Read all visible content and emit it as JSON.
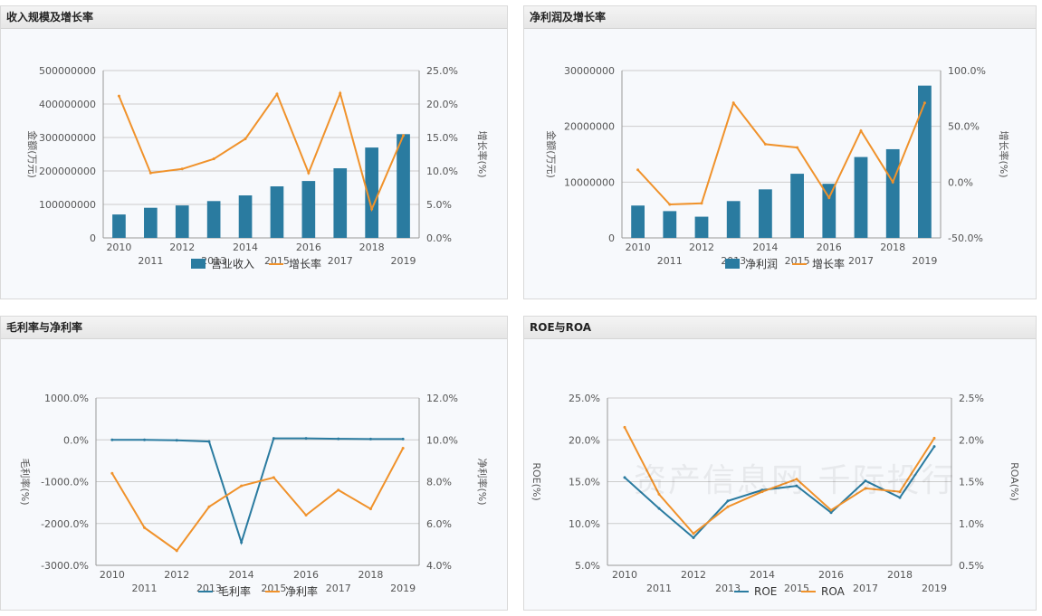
{
  "watermark": "资产信息网 千际投行",
  "colors": {
    "bar": "#2a7ba0",
    "line_orange": "#f0922b",
    "line_blue": "#2a7ba0",
    "grid": "#cccccc",
    "axis_text": "#555555"
  },
  "chart_data": [
    {
      "id": "revenue",
      "title": "收入规模及增长率",
      "type": "bar+line",
      "categories": [
        "2010",
        "2011",
        "2012",
        "2013",
        "2014",
        "2015",
        "2016",
        "2017",
        "2018",
        "2019"
      ],
      "series": [
        {
          "name": "营业收入",
          "kind": "bar",
          "axis": "left",
          "values": [
            70000000,
            90000000,
            97000000,
            110000000,
            127000000,
            154000000,
            170000000,
            208000000,
            270000000,
            310000000
          ]
        },
        {
          "name": "增长率",
          "kind": "line",
          "axis": "right",
          "values": [
            21.2,
            9.7,
            10.3,
            11.8,
            14.8,
            21.5,
            9.7,
            21.6,
            4.3,
            15.3
          ]
        }
      ],
      "left_axis": {
        "label": "金额(万元)",
        "min": 0,
        "max": 500000000,
        "ticks": [
          "0",
          "100000000",
          "200000000",
          "300000000",
          "400000000",
          "500000000"
        ]
      },
      "right_axis": {
        "label": "增长率(%)",
        "min": 0,
        "max": 25,
        "ticks": [
          "0.0%",
          "5.0%",
          "10.0%",
          "15.0%",
          "20.0%",
          "25.0%"
        ]
      },
      "legend": [
        "营业收入",
        "增长率"
      ]
    },
    {
      "id": "profit",
      "title": "净利润及增长率",
      "type": "bar+line",
      "categories": [
        "2010",
        "2011",
        "2012",
        "2013",
        "2014",
        "2015",
        "2016",
        "2017",
        "2018",
        "2019"
      ],
      "series": [
        {
          "name": "净利润",
          "kind": "bar",
          "axis": "left",
          "values": [
            5800000,
            4800000,
            3800000,
            6600000,
            8700000,
            11500000,
            9700000,
            14500000,
            15900000,
            27300000
          ]
        },
        {
          "name": "增长率",
          "kind": "line",
          "axis": "right",
          "values": [
            11,
            -20,
            -19,
            71,
            34,
            31,
            -14,
            46,
            0,
            71
          ]
        }
      ],
      "left_axis": {
        "label": "金额(万元)",
        "min": 0,
        "max": 30000000,
        "ticks": [
          "0",
          "10000000",
          "20000000",
          "30000000"
        ]
      },
      "right_axis": {
        "label": "增长率(%)",
        "min": -50,
        "max": 100,
        "ticks": [
          "-50.0%",
          "0.0%",
          "50.0%",
          "100.0%"
        ]
      },
      "legend": [
        "净利润",
        "增长率"
      ]
    },
    {
      "id": "margins",
      "title": "毛利率与净利率",
      "type": "line",
      "categories": [
        "2010",
        "2011",
        "2012",
        "2013",
        "2014",
        "2015",
        "2016",
        "2017",
        "2018",
        "2019"
      ],
      "series": [
        {
          "name": "毛利率",
          "kind": "line",
          "axis": "left",
          "color": "blue",
          "values": [
            0,
            0,
            -10,
            -40,
            -2450,
            35,
            35,
            25,
            20,
            20
          ]
        },
        {
          "name": "净利率",
          "kind": "line",
          "axis": "right",
          "color": "orange",
          "values": [
            8.4,
            5.8,
            4.7,
            6.8,
            7.8,
            8.2,
            6.4,
            7.6,
            6.7,
            9.6
          ]
        }
      ],
      "left_axis": {
        "label": "毛利率(%)",
        "min": -3000,
        "max": 1000,
        "ticks": [
          "-3000.0%",
          "-2000.0%",
          "-1000.0%",
          "0.0%",
          "1000.0%"
        ]
      },
      "right_axis": {
        "label": "净利率(%)",
        "min": 4,
        "max": 12,
        "ticks": [
          "4.0%",
          "6.0%",
          "8.0%",
          "10.0%",
          "12.0%"
        ]
      },
      "legend": [
        "毛利率",
        "净利率"
      ]
    },
    {
      "id": "roe",
      "title": "ROE与ROA",
      "type": "line",
      "categories": [
        "2010",
        "2011",
        "2012",
        "2013",
        "2014",
        "2015",
        "2016",
        "2017",
        "2018",
        "2019"
      ],
      "series": [
        {
          "name": "ROE",
          "kind": "line",
          "axis": "left",
          "color": "blue",
          "values": [
            15.5,
            11.8,
            8.3,
            12.7,
            14.0,
            14.5,
            11.3,
            15.1,
            13.1,
            19.2
          ]
        },
        {
          "name": "ROA",
          "kind": "line",
          "axis": "right",
          "color": "orange",
          "values": [
            2.15,
            1.35,
            0.88,
            1.2,
            1.38,
            1.53,
            1.16,
            1.42,
            1.38,
            2.02
          ]
        }
      ],
      "left_axis": {
        "label": "ROE(%)",
        "min": 5,
        "max": 25,
        "ticks": [
          "5.0%",
          "10.0%",
          "15.0%",
          "20.0%",
          "25.0%"
        ]
      },
      "right_axis": {
        "label": "ROA(%)",
        "min": 0.5,
        "max": 2.5,
        "ticks": [
          "0.5%",
          "1.0%",
          "1.5%",
          "2.0%",
          "2.5%"
        ]
      },
      "legend": [
        "ROE",
        "ROA"
      ]
    }
  ]
}
